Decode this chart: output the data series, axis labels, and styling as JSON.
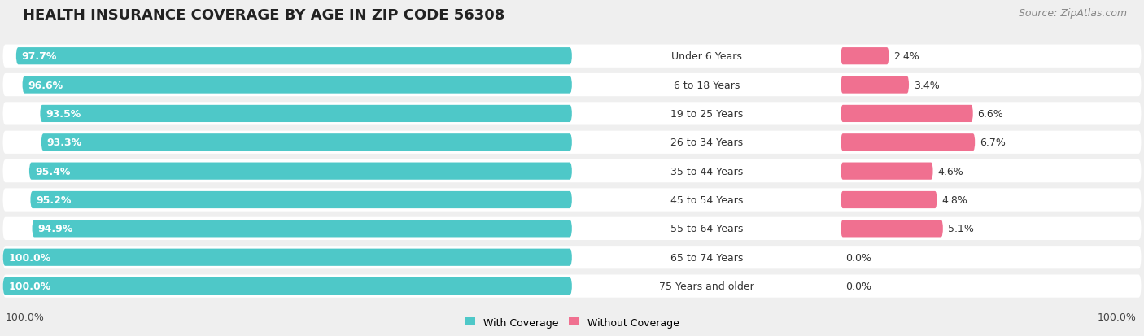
{
  "title": "HEALTH INSURANCE COVERAGE BY AGE IN ZIP CODE 56308",
  "source": "Source: ZipAtlas.com",
  "categories": [
    "Under 6 Years",
    "6 to 18 Years",
    "19 to 25 Years",
    "26 to 34 Years",
    "35 to 44 Years",
    "45 to 54 Years",
    "55 to 64 Years",
    "65 to 74 Years",
    "75 Years and older"
  ],
  "with_coverage": [
    97.7,
    96.6,
    93.5,
    93.3,
    95.4,
    95.2,
    94.9,
    100.0,
    100.0
  ],
  "without_coverage": [
    2.4,
    3.4,
    6.6,
    6.7,
    4.6,
    4.8,
    5.1,
    0.0,
    0.0
  ],
  "color_with": "#4ec8c8",
  "color_without": [
    "#f07090",
    "#f07090",
    "#f07090",
    "#f07090",
    "#f07090",
    "#f07090",
    "#f07090",
    "#f4aac4",
    "#f4aac4"
  ],
  "bg_color": "#efefef",
  "row_bg_color": "#ffffff",
  "title_fontsize": 13,
  "label_fontsize": 9,
  "source_fontsize": 9,
  "legend_label_with": "With Coverage",
  "legend_label_without": "Without Coverage",
  "bottom_right_label": "100.0%",
  "bottom_left_label": "100.0%"
}
